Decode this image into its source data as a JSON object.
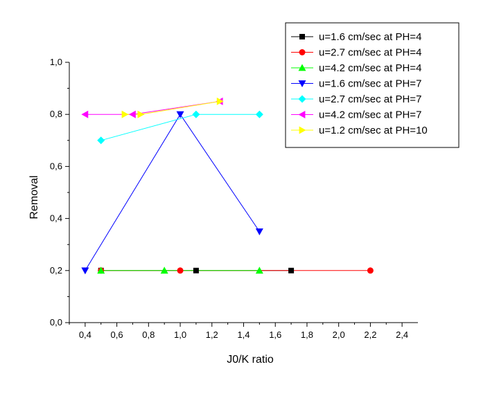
{
  "chart_data": {
    "type": "scatter",
    "xlabel": "J0/K ratio",
    "ylabel": "Removal",
    "xlim": [
      0.3,
      2.5
    ],
    "ylim": [
      0.0,
      1.0
    ],
    "x_ticks": [
      "0,4",
      "0,6",
      "0,8",
      "1,0",
      "1,2",
      "1,4",
      "1,6",
      "1,8",
      "2,0",
      "2,2",
      "2,4"
    ],
    "y_ticks": [
      "0,0",
      "0,2",
      "0,4",
      "0,6",
      "0,8",
      "1,0"
    ],
    "grid": false,
    "legend_position": "top-right",
    "series": [
      {
        "name": "u=1.6 cm/sec at PH=4",
        "color": "#000000",
        "marker": "square",
        "x": [
          0.5,
          1.1,
          1.7
        ],
        "y": [
          0.2,
          0.2,
          0.2
        ]
      },
      {
        "name": "u=2.7 cm/sec at PH=4",
        "color": "#ff0000",
        "marker": "circle",
        "x": [
          0.5,
          1.0,
          2.2
        ],
        "y": [
          0.2,
          0.2,
          0.2
        ]
      },
      {
        "name": "u=4.2 cm/sec at PH=4",
        "color": "#00ff00",
        "marker": "triangle-up",
        "x": [
          0.5,
          0.9,
          1.5
        ],
        "y": [
          0.2,
          0.2,
          0.2
        ]
      },
      {
        "name": "u=1.6 cm/sec at PH=7",
        "color": "#0000ff",
        "marker": "triangle-down",
        "x": [
          0.4,
          1.0,
          1.5
        ],
        "y": [
          0.2,
          0.8,
          0.35
        ]
      },
      {
        "name": "u=2.7 cm/sec at PH=7",
        "color": "#00ffff",
        "marker": "diamond",
        "x": [
          0.5,
          1.1,
          1.5
        ],
        "y": [
          0.7,
          0.8,
          0.8
        ]
      },
      {
        "name": "u=4.2 cm/sec at PH=7",
        "color": "#ff00ff",
        "marker": "triangle-left",
        "x": [
          0.4,
          0.7,
          1.25
        ],
        "y": [
          0.8,
          0.8,
          0.85
        ]
      },
      {
        "name": "u=1.2 cm/sec at PH=10",
        "color": "#ffff00",
        "marker": "triangle-right",
        "x": [
          0.65,
          0.75,
          1.25
        ],
        "y": [
          0.8,
          0.8,
          0.85
        ]
      }
    ]
  }
}
